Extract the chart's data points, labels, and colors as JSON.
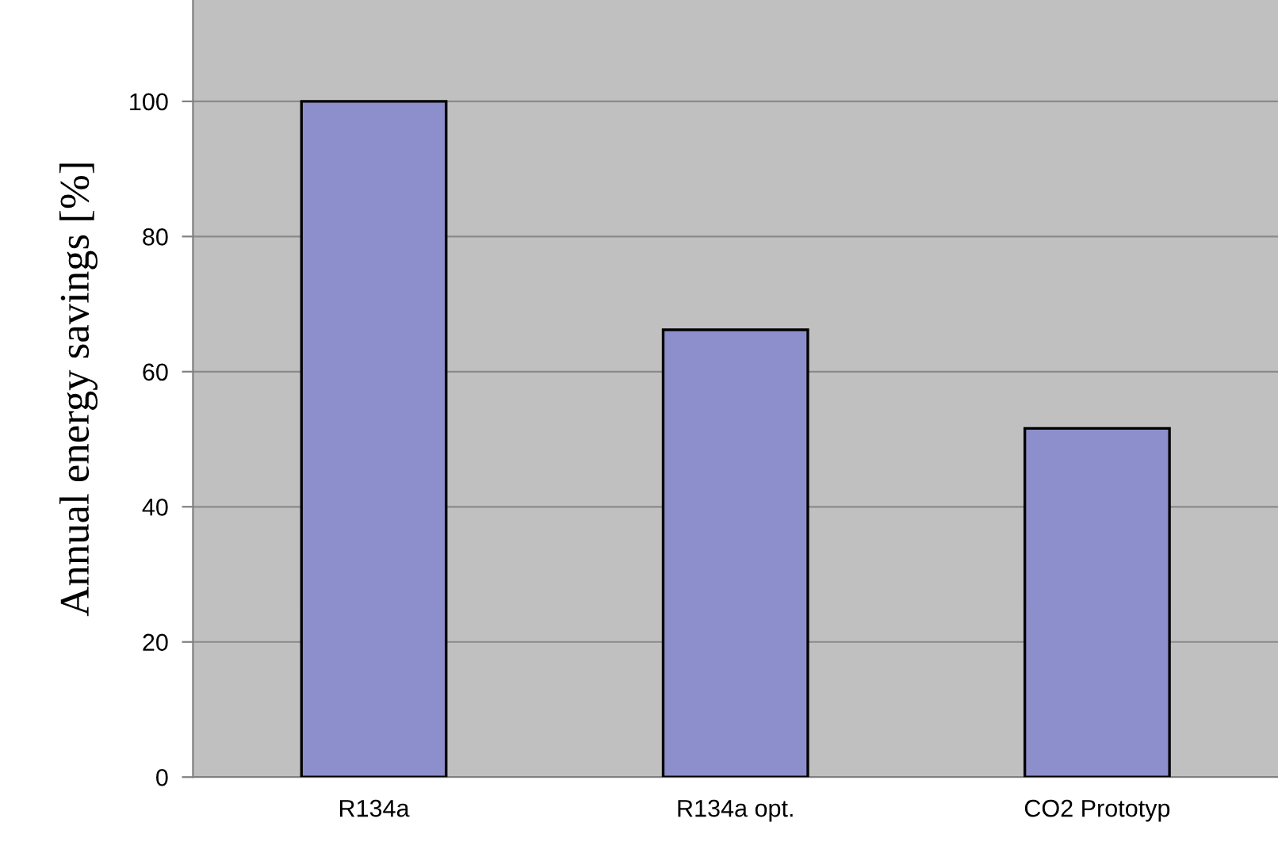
{
  "chart_data": {
    "type": "bar",
    "ylabel": "Annual energy savings [%]",
    "categories": [
      "R134a",
      "R134a opt.",
      "CO2 Prototyp"
    ],
    "values": [
      100,
      66.2,
      51.6
    ],
    "color": "#8c8fcb",
    "ylim": [
      0,
      115
    ],
    "yticks": [
      0,
      20,
      40,
      60,
      80,
      100
    ],
    "grid": "y",
    "legend": false
  }
}
